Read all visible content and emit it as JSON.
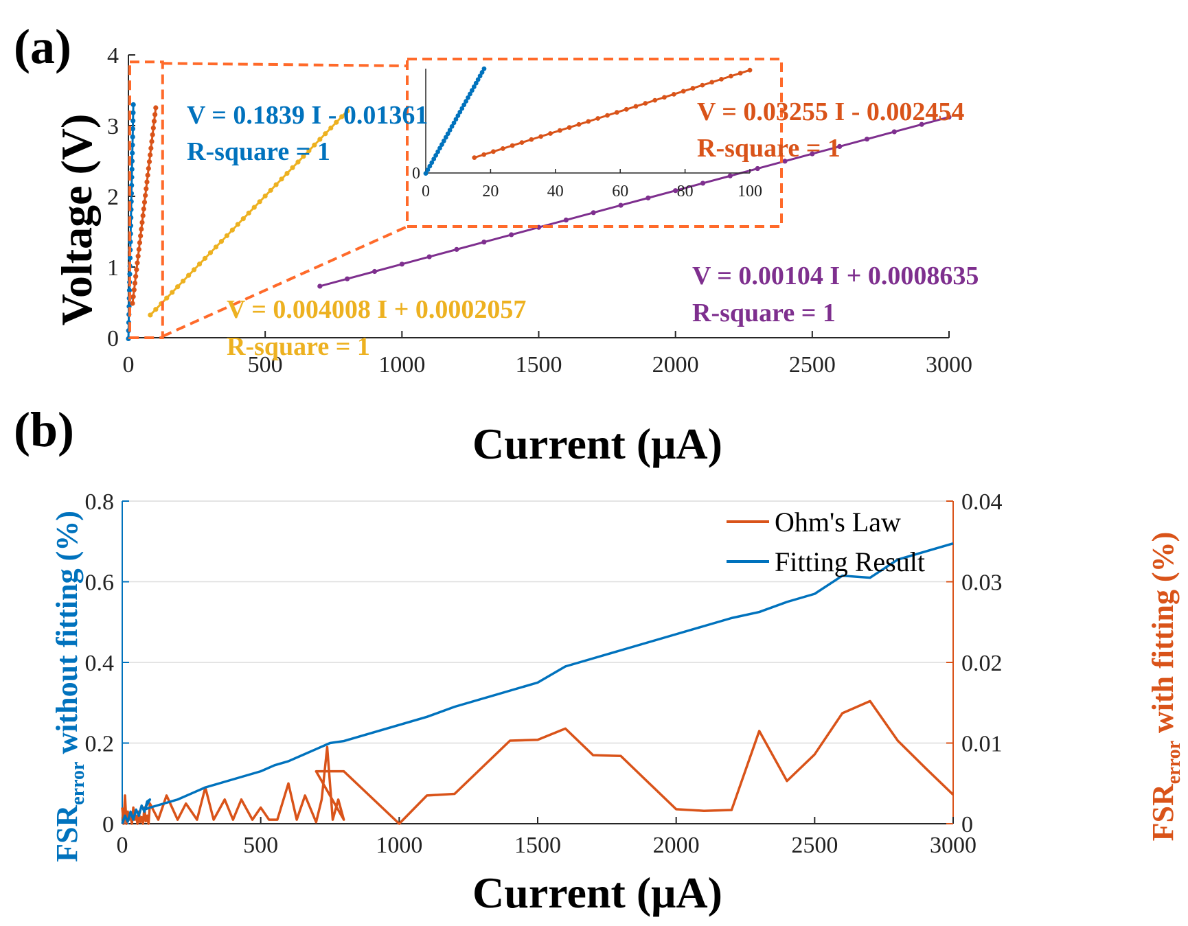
{
  "colors": {
    "blue": "#0072BD",
    "orange": "#D95319",
    "yellow": "#EDB120",
    "purple": "#7E2F8E",
    "zoom_box": "#FF6A2A",
    "axis": "#262626",
    "grid": "#DCDCDC"
  },
  "chart_data": [
    {
      "id": "a",
      "panel_label": "(a)",
      "type": "scatter",
      "xlabel": "Current (μA)",
      "ylabel": "Voltage (V)",
      "xlim": [
        0,
        3000
      ],
      "ylim": [
        0,
        4
      ],
      "xticks": [
        "0",
        "500",
        "1000",
        "1500",
        "2000",
        "2500",
        "3000"
      ],
      "yticks": [
        "0",
        "1",
        "2",
        "3",
        "4"
      ],
      "series": [
        {
          "name": "blue",
          "color": "blue",
          "slope": 0.1839,
          "intercept": -0.01361,
          "x_start": 0,
          "x_end": 18,
          "n": 30,
          "equation": "V = 0.1839 I - 0.01361",
          "rsq": "R-square = 1"
        },
        {
          "name": "orange",
          "color": "orange",
          "slope": 0.03255,
          "intercept": -0.002454,
          "x_start": 15,
          "x_end": 100,
          "n": 30,
          "equation": "V = 0.03255 I - 0.002454",
          "rsq": "R-square = 1"
        },
        {
          "name": "yellow",
          "color": "yellow",
          "slope": 0.004008,
          "intercept": 0.0002057,
          "x_start": 80,
          "x_end": 800,
          "n": 37,
          "equation": "V = 0.004008 I + 0.0002057",
          "rsq": "R-square = 1"
        },
        {
          "name": "purple",
          "color": "purple",
          "slope": 0.00104,
          "intercept": 0.0008635,
          "x_start": 700,
          "x_end": 3000,
          "n": 24,
          "equation": "V = 0.00104 I + 0.0008635",
          "rsq": "R-square = 1"
        }
      ],
      "inset": {
        "xlim": [
          0,
          100
        ],
        "ylim": [
          0,
          3.3
        ],
        "xticks": [
          "0",
          "20",
          "40",
          "60",
          "80",
          "100"
        ],
        "yticks": [
          "0"
        ],
        "zoom_region": {
          "x": [
            0,
            125
          ],
          "y": [
            0,
            3.9
          ]
        }
      }
    },
    {
      "id": "b",
      "panel_label": "(b)",
      "type": "line",
      "xlabel": "Current (μA)",
      "xlim": [
        0,
        3000
      ],
      "xticks": [
        "0",
        "500",
        "1000",
        "1500",
        "2000",
        "2500",
        "3000"
      ],
      "ylabel_left_main": "FSR",
      "ylabel_left_sub": "error",
      "ylabel_left_rest": " without fitting (%)",
      "ylabel_right_main": "FSR",
      "ylabel_right_sub": "error",
      "ylabel_right_rest": " with fitting (%)",
      "ylim_left": [
        0,
        0.8
      ],
      "ylim_right": [
        0,
        0.04
      ],
      "yticks_left": [
        "0",
        "0.2",
        "0.4",
        "0.6",
        "0.8"
      ],
      "yticks_right": [
        "0",
        "0.01",
        "0.02",
        "0.03",
        "0.04"
      ],
      "legend": [
        "Ohm's Law",
        "Fitting Result"
      ],
      "fitting_result": {
        "axis": "left",
        "color": "blue",
        "x": [
          0,
          10,
          20,
          30,
          40,
          50,
          60,
          70,
          80,
          90,
          100,
          80,
          100,
          150,
          200,
          250,
          300,
          350,
          400,
          450,
          500,
          550,
          600,
          650,
          700,
          750,
          800,
          900,
          1000,
          1100,
          1200,
          1300,
          1400,
          1500,
          1600,
          1700,
          1800,
          1900,
          2000,
          2100,
          2200,
          2300,
          2400,
          2500,
          2600,
          2700,
          2800,
          2900,
          3000
        ],
        "y": [
          0.0,
          0.02,
          0.005,
          0.03,
          0.01,
          0.035,
          0.02,
          0.045,
          0.03,
          0.055,
          0.06,
          0.035,
          0.04,
          0.05,
          0.06,
          0.075,
          0.09,
          0.1,
          0.11,
          0.12,
          0.13,
          0.145,
          0.155,
          0.17,
          0.185,
          0.2,
          0.205,
          0.225,
          0.245,
          0.265,
          0.29,
          0.31,
          0.33,
          0.35,
          0.39,
          0.41,
          0.43,
          0.45,
          0.47,
          0.49,
          0.51,
          0.525,
          0.55,
          0.57,
          0.615,
          0.61,
          0.655,
          0.675,
          0.695
        ]
      },
      "ohms_law": {
        "axis": "right",
        "color": "orange",
        "x": [
          0,
          5,
          10,
          15,
          20,
          25,
          30,
          35,
          40,
          45,
          50,
          55,
          60,
          65,
          70,
          75,
          80,
          85,
          90,
          95,
          100,
          130,
          160,
          200,
          230,
          270,
          300,
          330,
          370,
          400,
          430,
          470,
          500,
          530,
          560,
          600,
          630,
          660,
          700,
          720,
          740,
          760,
          780,
          800,
          700,
          800,
          1000,
          1100,
          1200,
          1300,
          1400,
          1500,
          1600,
          1700,
          1800,
          1900,
          2000,
          2100,
          2200,
          2300,
          2400,
          2500,
          2600,
          2700,
          2800,
          2900,
          3000
        ],
        "y": [
          0.002,
          0.0,
          0.0035,
          0.0,
          0.0015,
          0.0005,
          0.001,
          0.0,
          0.002,
          0.0005,
          0.001,
          0.0,
          0.0015,
          0.0002,
          0.0008,
          0.0,
          0.002,
          0.0003,
          0.001,
          0.0,
          0.0025,
          0.0005,
          0.0035,
          0.0005,
          0.0025,
          0.0005,
          0.0045,
          0.0005,
          0.003,
          0.0005,
          0.003,
          0.0005,
          0.002,
          0.0005,
          0.0005,
          0.005,
          0.0005,
          0.0035,
          0.0002,
          0.003,
          0.0095,
          0.0005,
          0.003,
          0.0005,
          0.0065,
          0.0065,
          0.0,
          0.0035,
          0.0037,
          0.007,
          0.0103,
          0.0104,
          0.0118,
          0.0085,
          0.0084,
          0.0051,
          0.0018,
          0.0016,
          0.0017,
          0.0115,
          0.0053,
          0.0086,
          0.0137,
          0.0152,
          0.0103,
          0.0069,
          0.0036
        ]
      }
    }
  ]
}
